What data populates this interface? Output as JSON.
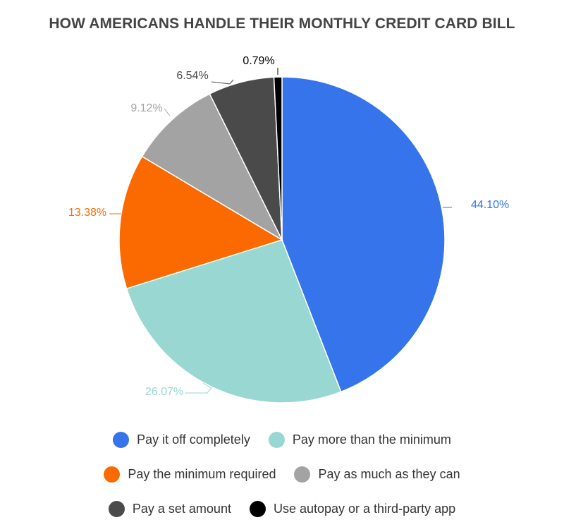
{
  "chart_data": {
    "type": "pie",
    "title": "HOW AMERICANS HANDLE THEIR MONTHLY CREDIT CARD BILL",
    "slices": [
      {
        "label": "Pay it off completely",
        "value": 44.1,
        "value_label": "44.10%",
        "color": "#3574EA",
        "label_color": "#3574EA"
      },
      {
        "label": "Pay more than the minimum",
        "value": 26.07,
        "value_label": "26.07%",
        "color": "#98D7D2",
        "label_color": "#98D7D2"
      },
      {
        "label": "Pay the minimum required",
        "value": 13.38,
        "value_label": "13.38%",
        "color": "#FA6A00",
        "label_color": "#FA6A00"
      },
      {
        "label": "Pay as much as they can",
        "value": 9.12,
        "value_label": "9.12%",
        "color": "#A3A3A3",
        "label_color": "#A3A3A3"
      },
      {
        "label": "Pay a set amount",
        "value": 6.54,
        "value_label": "6.54%",
        "color": "#4A4A4A",
        "label_color": "#4A4A4A"
      },
      {
        "label": "Use autopay or a third-party app",
        "value": 0.79,
        "value_label": "0.79%",
        "color": "#000000",
        "label_color": "#000000"
      }
    ],
    "start_angle": "top (12 o'clock)",
    "direction": "clockwise",
    "legend_position": "bottom"
  }
}
